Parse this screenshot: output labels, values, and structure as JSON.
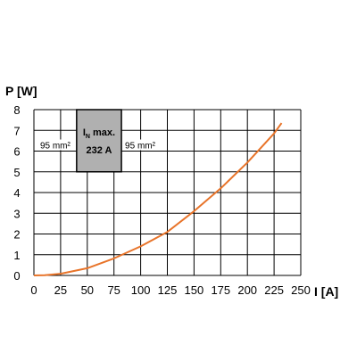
{
  "chart_data": {
    "type": "line",
    "ylabel": "P [W]",
    "xlabel": "I [A]",
    "xlim": [
      0,
      250
    ],
    "ylim": [
      0,
      8
    ],
    "xticks": [
      0,
      25,
      50,
      75,
      100,
      125,
      150,
      175,
      200,
      225,
      250
    ],
    "yticks": [
      0,
      1,
      2,
      3,
      4,
      5,
      6,
      7,
      8
    ],
    "grid": true,
    "series": [
      {
        "color": "#e8742a",
        "x": [
          0,
          10,
          25,
          50,
          75,
          100,
          125,
          150,
          175,
          200,
          225,
          232
        ],
        "y": [
          0,
          0.01,
          0.08,
          0.35,
          0.82,
          1.4,
          2.1,
          3.1,
          4.2,
          5.45,
          6.85,
          7.35
        ]
      }
    ],
    "annotations": {
      "left_cable": "95 mm²",
      "right_cable": "95 mm²",
      "rating_line1": "I",
      "rating_sub": "N",
      "rating_line1_rest": " max.",
      "rating_line2": "232 A",
      "rating_box_color": "#b0b0b0",
      "rating_x_range": [
        40,
        82
      ],
      "rating_y_range": [
        5.0,
        8.0
      ],
      "cable_y": 6.0
    }
  }
}
